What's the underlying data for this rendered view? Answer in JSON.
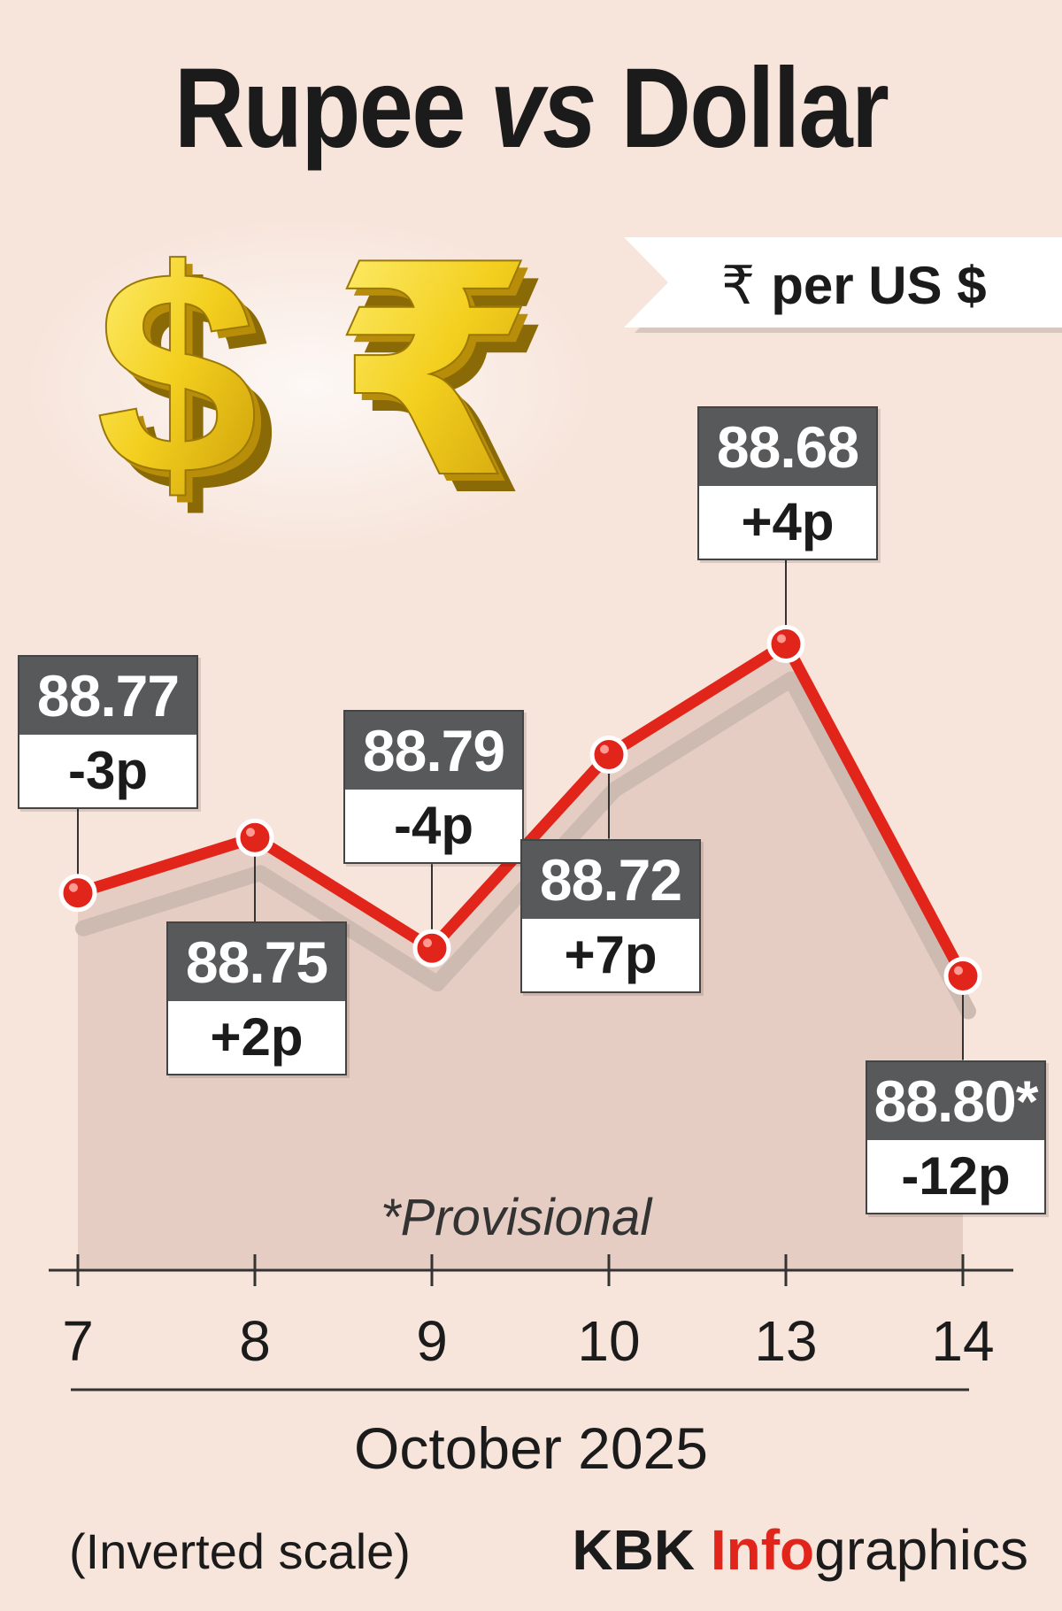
{
  "header": {
    "title_part1": "Rupee",
    "title_part2": "vs",
    "title_part3": "Dollar",
    "unit_symbol": "₹",
    "unit_text": "per US $"
  },
  "icons": [
    "dollar-sign-3d-icon",
    "rupee-sign-3d-icon"
  ],
  "colors": {
    "background": "#f7e4da",
    "line": "#e1251b",
    "label_header": "#58595b",
    "brand_accent": "#e1251b"
  },
  "chart_data": {
    "type": "line",
    "categories": [
      "7",
      "8",
      "9",
      "10",
      "13",
      "14"
    ],
    "values": [
      88.77,
      88.75,
      88.79,
      88.72,
      88.68,
      88.8
    ],
    "value_labels": [
      "88.77",
      "88.75",
      "88.79",
      "88.72",
      "88.68",
      "88.80*"
    ],
    "changes": [
      "-3p",
      "+2p",
      "-4p",
      "+7p",
      "+4p",
      "-12p"
    ],
    "xlabel": "October 2025",
    "ylabel": "",
    "y_axis_inverted": true,
    "ylim": [
      88.62,
      88.86
    ],
    "grid": false,
    "annotation": "*Provisional",
    "footnote": "(Inverted scale)"
  },
  "brand": {
    "part1": "KBK",
    "part2": "Info",
    "part3": "graphics"
  }
}
